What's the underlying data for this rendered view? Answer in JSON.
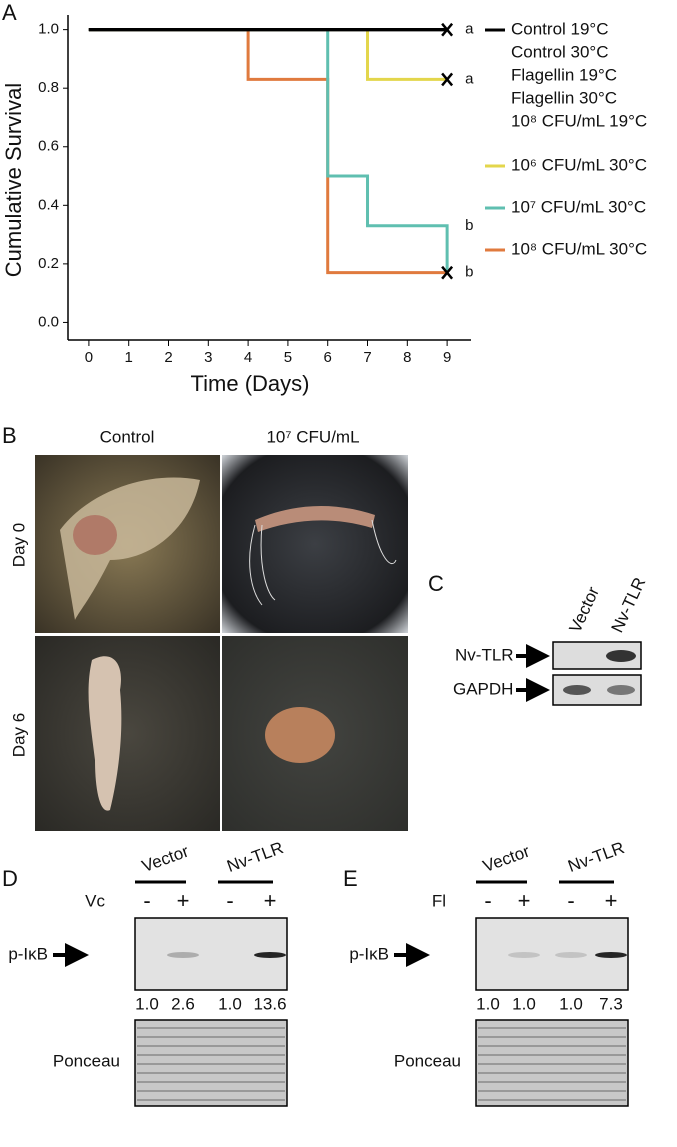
{
  "chart_data": {
    "type": "line",
    "step": true,
    "panel_label": "A",
    "x_label": "Time (Days)",
    "y_label": "Cumulative Survival",
    "xlim": [
      -0.5,
      9.6
    ],
    "xticks": [
      0,
      1,
      2,
      3,
      4,
      5,
      6,
      7,
      8,
      9
    ],
    "ylim": [
      -0.06,
      1.05
    ],
    "yticks": [
      {
        "value": 0,
        "label": "0.0"
      },
      0.2,
      0.4,
      0.6,
      0.8,
      {
        "value": 1,
        "label": "1.0"
      }
    ],
    "series": [
      {
        "name": "Control 19°C",
        "color": "#000000",
        "x": [
          0,
          9
        ],
        "values": [
          1,
          1
        ]
      },
      {
        "name": "Control 30°C",
        "color": "#000000",
        "x": [
          0,
          9
        ],
        "values": [
          1,
          1
        ]
      },
      {
        "name": "Flagellin 19°C",
        "color": "#000000",
        "x": [
          0,
          9
        ],
        "values": [
          1,
          1
        ]
      },
      {
        "name": "Flagellin 30°C",
        "color": "#000000",
        "x": [
          0,
          9
        ],
        "values": [
          1,
          1
        ]
      },
      {
        "name": "10⁸ CFU/mL 19°C",
        "color": "#000000",
        "x": [
          0,
          9
        ],
        "values": [
          1,
          1
        ]
      },
      {
        "name": "10⁶ CFU/mL 30°C",
        "color": "#e3d64b",
        "x": [
          0,
          7,
          9
        ],
        "values": [
          1,
          0.83,
          0.83
        ]
      },
      {
        "name": "10⁷ CFU/mL 30°C",
        "color": "#5fbfb0",
        "x": [
          0,
          6,
          7,
          9
        ],
        "values": [
          1,
          0.5,
          0.33,
          0.17
        ]
      },
      {
        "name": "10⁸ CFU/mL 30°C",
        "color": "#e07a3e",
        "x": [
          0,
          4,
          6,
          9
        ],
        "values": [
          1,
          0.83,
          0.17,
          0.17
        ]
      }
    ],
    "censor_marks": [
      {
        "x": 9,
        "y": 1
      },
      {
        "x": 9,
        "y": 0.83
      },
      {
        "x": 9,
        "y": 0.17
      }
    ],
    "annotations": [
      {
        "text": "a",
        "x": 9,
        "y": 1
      },
      {
        "text": "a",
        "x": 9,
        "y": 0.83
      },
      {
        "text": "b",
        "x": 9,
        "y": 0.33
      },
      {
        "text": "b",
        "x": 9,
        "y": 0.17
      }
    ]
  },
  "panel_b": {
    "label": "B",
    "columns": [
      "Control",
      "10⁷ CFU/mL"
    ],
    "rows": [
      "Day 0",
      "Day 6"
    ]
  },
  "panel_c": {
    "label": "C",
    "lanes": [
      "Vector",
      "Nv-TLR"
    ],
    "bands": [
      "Nv-TLR",
      "GAPDH"
    ]
  },
  "panel_d": {
    "label": "D",
    "groups": [
      "Vector",
      "Nv-TLR"
    ],
    "treatment": "Vc",
    "signs": [
      "-",
      "+",
      "-",
      "+"
    ],
    "target": "p-IκB",
    "quantification": [
      "1.0",
      "2.6",
      "1.0",
      "13.6"
    ],
    "loading": "Ponceau"
  },
  "panel_e": {
    "label": "E",
    "groups": [
      "Vector",
      "Nv-TLR"
    ],
    "treatment": "Fl",
    "signs": [
      "-",
      "+",
      "-",
      "+"
    ],
    "target": "p-IκB",
    "quantification": [
      "1.0",
      "1.0",
      "1.0",
      "7.3"
    ],
    "loading": "Ponceau"
  }
}
